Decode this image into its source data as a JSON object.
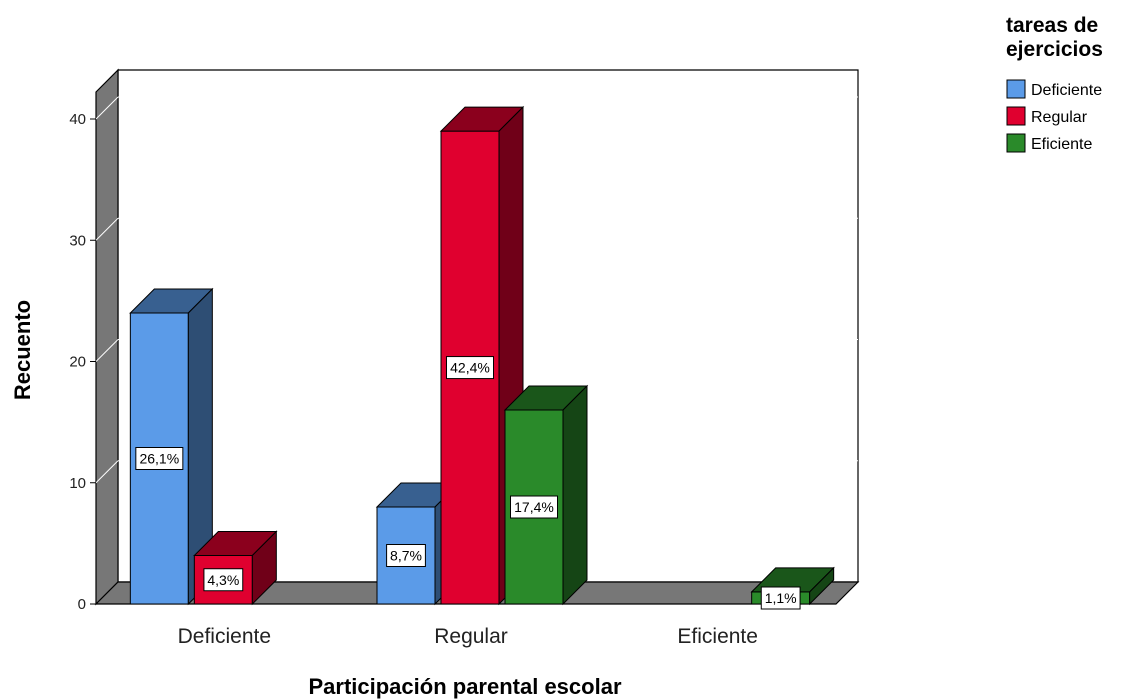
{
  "chart_data": {
    "type": "bar",
    "subtype": "3d-clustered",
    "xlabel": "Participación parental escolar",
    "ylabel": "Recuento",
    "categories": [
      "Deficiente",
      "Regular",
      "Eficiente"
    ],
    "ylim": [
      0,
      40
    ],
    "yticks": [
      0,
      10,
      20,
      30,
      40
    ],
    "legend": {
      "title": "tareas de ejercicios",
      "title_lines": [
        "tareas de",
        "ejercicios"
      ],
      "placement": "top-right"
    },
    "series": [
      {
        "name": "Deficiente",
        "color": "#5b9be8",
        "values": [
          24,
          8,
          0
        ],
        "labels": [
          "26,1%",
          "8,7%",
          ""
        ]
      },
      {
        "name": "Regular",
        "color": "#e0002f",
        "values": [
          4,
          39,
          0
        ],
        "labels": [
          "4,3%",
          "42,4%",
          ""
        ]
      },
      {
        "name": "Eficiente",
        "color": "#2a8a2a",
        "values": [
          0,
          16,
          1
        ],
        "labels": [
          "",
          "17,4%",
          "1,1%"
        ]
      }
    ],
    "grid": true
  }
}
